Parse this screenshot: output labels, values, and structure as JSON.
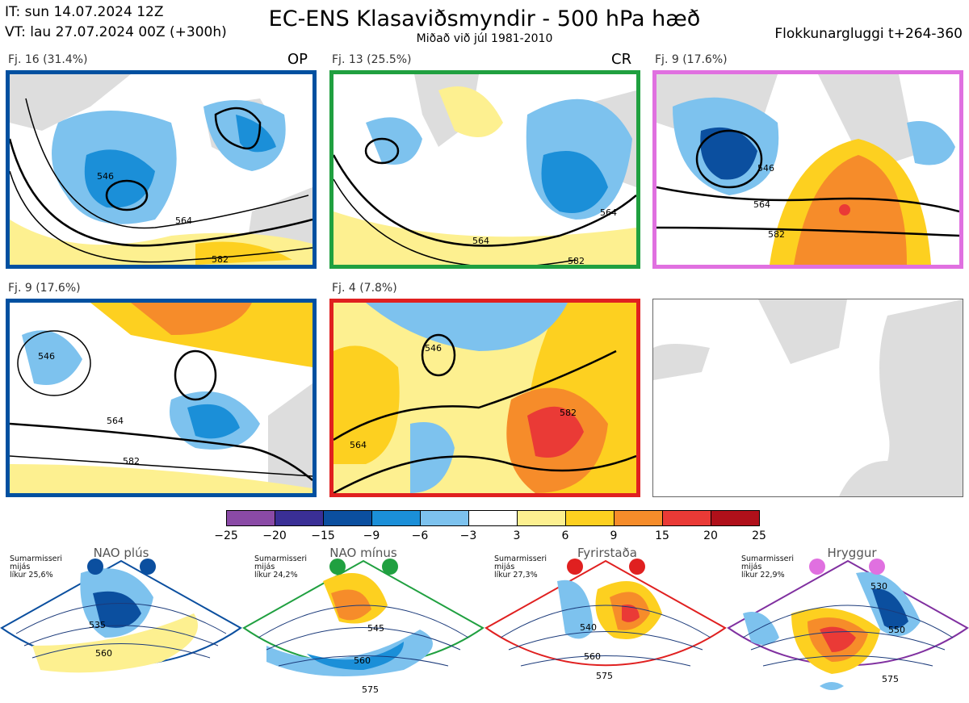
{
  "header": {
    "it": "IT: sun 14.07.2024 12Z",
    "vt": "VT: lau 27.07.2024 00Z  (+300h)",
    "title": "EC-ENS Klasaviðsmyndir - 500 hPa hæð",
    "subtitle": "Miðað við júl 1981-2010",
    "window": "Flokkunargluggi t+264-360"
  },
  "panels": [
    {
      "label": "Fj. 16 (31.4%)",
      "tag": "OP",
      "border": "#0050a0",
      "contours": [
        "546",
        "564",
        "582"
      ]
    },
    {
      "label": "Fj. 13 (25.5%)",
      "tag": "CR",
      "border": "#20a040",
      "contours": [
        "564",
        "564",
        "582"
      ]
    },
    {
      "label": "Fj. 9 (17.6%)",
      "tag": "",
      "border": "#e070e0",
      "contours": [
        "546",
        "564",
        "582"
      ]
    },
    {
      "label": "Fj. 9 (17.6%)",
      "tag": "",
      "border": "#0050a0",
      "contours": [
        "546",
        "564",
        "582"
      ]
    },
    {
      "label": "Fj. 4 (7.8%)",
      "tag": "",
      "border": "#e02020",
      "contours": [
        "546",
        "564",
        "582"
      ]
    }
  ],
  "colorbar": {
    "colors": [
      "#8a4aa6",
      "#3a2f96",
      "#0b4f9f",
      "#1b8fd8",
      "#7dc2ee",
      "#ffffff",
      "#fdf090",
      "#fdd020",
      "#f68c2a",
      "#ea3a36",
      "#b0101a"
    ],
    "ticks": [
      "−25",
      "−20",
      "−15",
      "−9",
      "−6",
      "−3",
      "3",
      "6",
      "9",
      "15",
      "20",
      "25"
    ]
  },
  "regimes": [
    {
      "name": "NAO plús",
      "season": "Sumarmisseri",
      "kind": "mijás",
      "prob": "líkur 25,6%",
      "color": "#0b4f9f",
      "labels": [
        "535",
        "560"
      ]
    },
    {
      "name": "NAO mínus",
      "season": "Sumarmisseri",
      "kind": "mijás",
      "prob": "líkur 24,2%",
      "color": "#20a040",
      "labels": [
        "545",
        "560",
        "575"
      ]
    },
    {
      "name": "Fyrirstaða",
      "season": "Sumarmisseri",
      "kind": "mijás",
      "prob": "líkur 27,3%",
      "color": "#e02020",
      "labels": [
        "540",
        "560",
        "575"
      ]
    },
    {
      "name": "Hryggur",
      "season": "Sumarmisseri",
      "kind": "mijás",
      "prob": "líkur 22,9%",
      "color": "#e070e0",
      "labels": [
        "530",
        "550",
        "575"
      ]
    }
  ]
}
